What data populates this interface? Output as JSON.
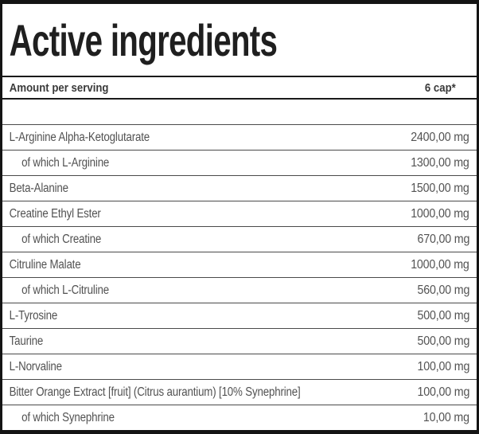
{
  "table": {
    "title": "Active ingredients",
    "header": {
      "label": "Amount per serving",
      "amount": "6 cap*"
    },
    "rows": [
      {
        "label": "L-Arginine Alpha-Ketoglutarate",
        "amount": "2400,00 mg",
        "sub": false
      },
      {
        "label": "of which L-Arginine",
        "amount": "1300,00 mg",
        "sub": true
      },
      {
        "label": "Beta-Alanine",
        "amount": "1500,00 mg",
        "sub": false
      },
      {
        "label": "Creatine Ethyl Ester",
        "amount": "1000,00 mg",
        "sub": false
      },
      {
        "label": "of which Creatine",
        "amount": "670,00 mg",
        "sub": true
      },
      {
        "label": "Citruline Malate",
        "amount": "1000,00 mg",
        "sub": false
      },
      {
        "label": "of which L-Citruline",
        "amount": "560,00 mg",
        "sub": true
      },
      {
        "label": "L-Tyrosine",
        "amount": "500,00 mg",
        "sub": false
      },
      {
        "label": "Taurine",
        "amount": "500,00 mg",
        "sub": false
      },
      {
        "label": "L-Norvaline",
        "amount": "100,00 mg",
        "sub": false
      },
      {
        "label": "Bitter Orange Extract [fruit] (Citrus aurantium) [10% Synephrine]",
        "amount": "100,00 mg",
        "sub": false
      },
      {
        "label": "of which Synephrine",
        "amount": "10,00 mg",
        "sub": true
      }
    ],
    "colors": {
      "border": "#141414",
      "separator": "#4a4a4a",
      "title_text": "#1f1f1f",
      "header_text": "#3a3a3a",
      "row_text": "#525252",
      "background": "#ffffff"
    }
  }
}
